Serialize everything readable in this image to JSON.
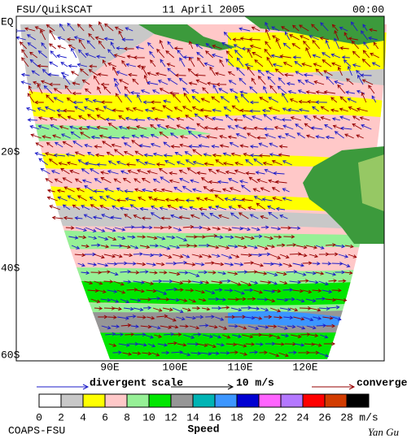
{
  "header": {
    "title": "FSU/QuikSCAT",
    "date": "11 April 2005",
    "time": "00:00"
  },
  "map": {
    "lat_labels": [
      "EQ",
      "20S",
      "40S",
      "60S"
    ],
    "lon_labels": [
      "90E",
      "100E",
      "110E",
      "120E"
    ]
  },
  "legend": {
    "divergent": "divergent",
    "scale": "scale",
    "scale_value": "10 m/s",
    "convergent": "convergent",
    "divergent_color": "#1c1cc8",
    "convergent_color": "#960000"
  },
  "colorbar": {
    "ticks": [
      0,
      2,
      4,
      6,
      8,
      10,
      12,
      14,
      16,
      18,
      20,
      22,
      24,
      26,
      28
    ],
    "unit": "m/s",
    "label": "Speed",
    "colors": [
      "#ffffff",
      "#c8c8c8",
      "#ffff00",
      "#ffc8c8",
      "#96f096",
      "#00e600",
      "#969696",
      "#00b4b4",
      "#3c96ff",
      "#0000d2",
      "#ff64ff",
      "#b478ff",
      "#ff0000",
      "#d23c00",
      "#000000"
    ]
  },
  "footer": {
    "left": "COAPS-FSU",
    "right": "Yan Gu"
  }
}
